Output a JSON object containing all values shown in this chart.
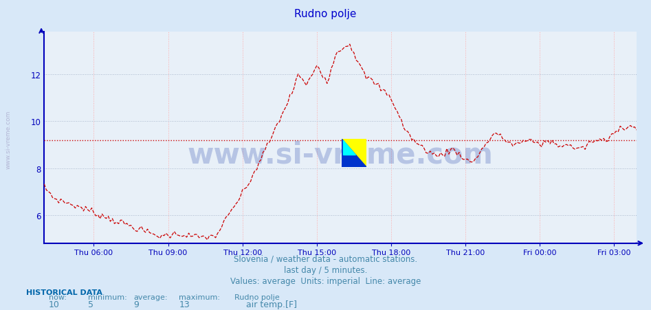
{
  "title": "Rudno polje",
  "title_color": "#0000cc",
  "background_color": "#d8e8f8",
  "plot_bg_color": "#e8f0f8",
  "line_color": "#cc0000",
  "avg_line_color": "#cc0000",
  "avg_line_value": 9.2,
  "yticks": [
    6,
    8,
    10,
    12
  ],
  "ylim": [
    4.8,
    13.8
  ],
  "xtick_labels": [
    "Thu 06:00",
    "Thu 09:00",
    "Thu 12:00",
    "Thu 15:00",
    "Thu 18:00",
    "Thu 21:00",
    "Fri 00:00",
    "Fri 03:00"
  ],
  "subtitle1": "Slovenia / weather data - automatic stations.",
  "subtitle2": "last day / 5 minutes.",
  "subtitle3": "Values: average  Units: imperial  Line: average",
  "hist_label": "HISTORICAL DATA",
  "now_label": "now:",
  "min_label": "minimum:",
  "avg_label": "average:",
  "max_label": "maximum:",
  "station_label": "Rudno polje",
  "now_val": "10",
  "min_val": "5",
  "avg_val": "9",
  "max_val": "13",
  "series_label": "air temp.[F]",
  "watermark": "www.si-vreme.com",
  "side_label": "www.si-vreme.com"
}
